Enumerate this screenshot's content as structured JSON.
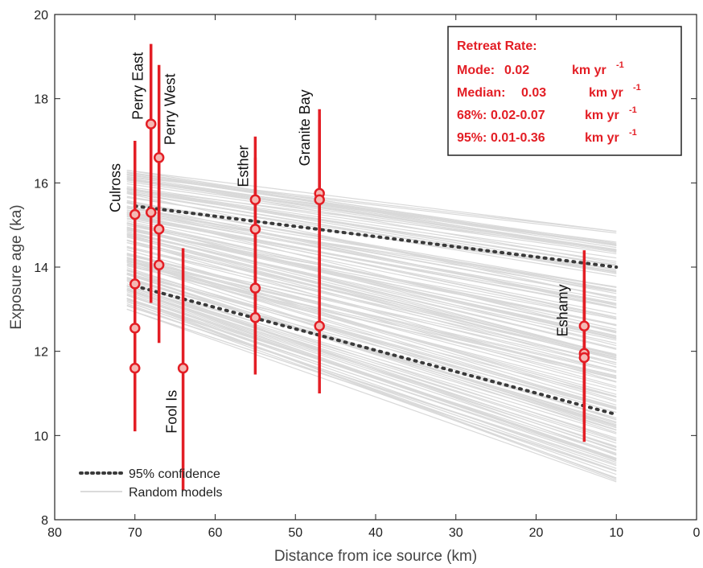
{
  "colors": {
    "accent": "#e31e25",
    "band_gray": "#d9d9d9",
    "confidence": "#3a3a3a"
  },
  "chart_data": {
    "type": "scatter",
    "xlabel": "Distance from ice source (km)",
    "ylabel": "Exposure age (ka)",
    "xlim": [
      80,
      0
    ],
    "ylim": [
      8,
      20
    ],
    "x_reversed": true,
    "xticks": [
      80,
      70,
      60,
      50,
      40,
      30,
      20,
      10,
      0
    ],
    "yticks": [
      8,
      10,
      12,
      14,
      16,
      18,
      20
    ],
    "grid": false,
    "legend": {
      "placement": "bottom-left",
      "entries": [
        "95% confidence",
        "Random models"
      ]
    },
    "sites": [
      {
        "name": "Culross",
        "x": 70,
        "points": [
          {
            "y": 15.25,
            "lo": 13.5,
            "hi": 17.0
          },
          {
            "y": 13.6,
            "lo": 11.8,
            "hi": 15.5
          },
          {
            "y": 12.55,
            "lo": 10.9,
            "hi": 14.3
          },
          {
            "y": 11.6,
            "lo": 10.1,
            "hi": 13.2
          }
        ]
      },
      {
        "name": "Perry East",
        "x": 68,
        "points": [
          {
            "y": 17.4,
            "lo": 15.5,
            "hi": 19.3
          },
          {
            "y": 15.3,
            "lo": 13.15,
            "hi": 17.3
          }
        ]
      },
      {
        "name": "Perry West",
        "x": 67,
        "points": [
          {
            "y": 16.6,
            "lo": 14.5,
            "hi": 18.8
          },
          {
            "y": 14.9,
            "lo": 12.9,
            "hi": 16.8
          },
          {
            "y": 14.05,
            "lo": 12.2,
            "hi": 15.9
          }
        ]
      },
      {
        "name": "Fool Is",
        "x": 64,
        "points": [
          {
            "y": 11.6,
            "lo": 8.7,
            "hi": 14.45
          }
        ]
      },
      {
        "name": "Esther",
        "x": 55,
        "points": [
          {
            "y": 15.6,
            "lo": 13.7,
            "hi": 17.1
          },
          {
            "y": 14.9,
            "lo": 13.1,
            "hi": 16.6
          },
          {
            "y": 13.5,
            "lo": 12.0,
            "hi": 15.1
          },
          {
            "y": 12.8,
            "lo": 11.45,
            "hi": 14.2
          }
        ]
      },
      {
        "name": "Granite Bay",
        "x": 47,
        "points": [
          {
            "y": 15.75,
            "lo": 13.8,
            "hi": 17.75
          },
          {
            "y": 15.6,
            "lo": 13.6,
            "hi": 17.5
          },
          {
            "y": 12.6,
            "lo": 11.0,
            "hi": 14.3
          }
        ]
      },
      {
        "name": "Eshamy",
        "x": 14,
        "points": [
          {
            "y": 12.6,
            "lo": 10.9,
            "hi": 14.4
          },
          {
            "y": 11.95,
            "lo": 10.3,
            "hi": 13.6
          },
          {
            "y": 11.85,
            "lo": 9.85,
            "hi": 13.7
          }
        ]
      }
    ],
    "confidence_lines": [
      {
        "x": [
          70,
          10
        ],
        "y": [
          15.45,
          14.0
        ]
      },
      {
        "x": [
          70,
          10
        ],
        "y": [
          13.55,
          10.5
        ]
      }
    ],
    "random_models": {
      "x_range": [
        71,
        10
      ],
      "start_min": 13.0,
      "start_max": 16.3,
      "end_min": 8.9,
      "end_max": 14.85
    },
    "info_box": {
      "title": "Retreat Rate:",
      "rows": [
        {
          "label": "Mode:",
          "value": "0.02",
          "unit": "km yr",
          "sup": "-1"
        },
        {
          "label": "Median:",
          "value": "0.03",
          "unit": "km yr",
          "sup": "-1"
        },
        {
          "label": "68%:",
          "value": "0.02-0.07",
          "unit": "km yr",
          "sup": "-1"
        },
        {
          "label": "95%:",
          "value": "0.01-0.36",
          "unit": "km yr",
          "sup": "-1"
        }
      ]
    }
  }
}
